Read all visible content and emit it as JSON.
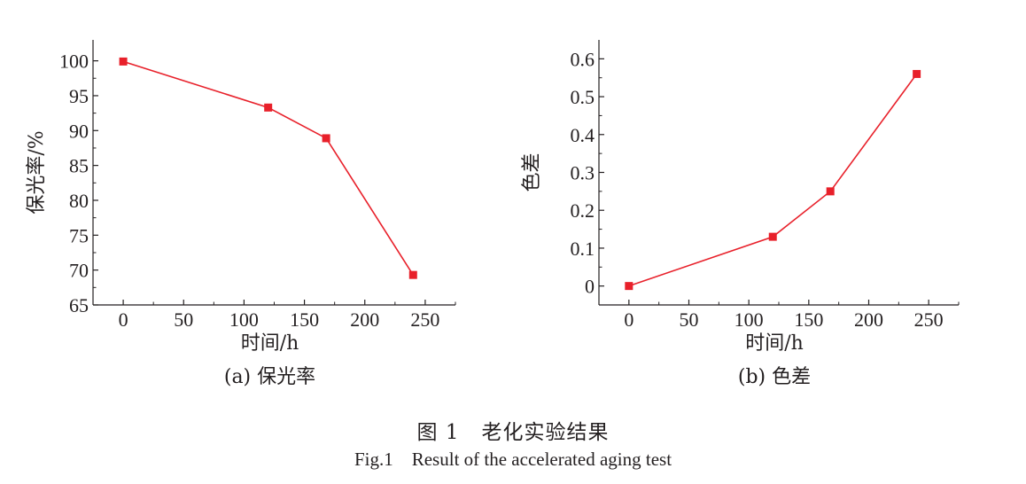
{
  "figure": {
    "caption_cn_label": "图 1",
    "caption_cn_text": "老化实验结果",
    "caption_en_label": "Fig.1",
    "caption_en_text": "Result of the accelerated aging test"
  },
  "colors": {
    "series": "#e8202a",
    "axis": "#231f20"
  },
  "chart_data": [
    {
      "type": "line",
      "title": "(a) 保光率",
      "xlabel": "时间/h",
      "ylabel": "保光率/%",
      "xlim": [
        -25,
        275
      ],
      "ylim": [
        65,
        103
      ],
      "xticks": [
        0,
        50,
        100,
        150,
        200,
        250
      ],
      "yticks": [
        65,
        70,
        75,
        80,
        85,
        90,
        95,
        100
      ],
      "ytick_labels": [
        "65",
        "70",
        "75",
        "80",
        "85",
        "90",
        "95",
        "100"
      ],
      "x": [
        0,
        120,
        168,
        240
      ],
      "y": [
        99.9,
        93.3,
        88.9,
        69.3
      ]
    },
    {
      "type": "line",
      "title": "(b) 色差",
      "xlabel": "时间/h",
      "ylabel": "色差",
      "xlim": [
        -25,
        275
      ],
      "ylim": [
        -0.05,
        0.65
      ],
      "xticks": [
        0,
        50,
        100,
        150,
        200,
        250
      ],
      "yticks": [
        0,
        0.1,
        0.2,
        0.3,
        0.4,
        0.5,
        0.6
      ],
      "ytick_labels": [
        "0",
        "0.1",
        "0.2",
        "0.3",
        "0.4",
        "0.5",
        "0.6"
      ],
      "x": [
        0,
        120,
        168,
        240
      ],
      "y": [
        0.0,
        0.13,
        0.25,
        0.56
      ]
    }
  ]
}
